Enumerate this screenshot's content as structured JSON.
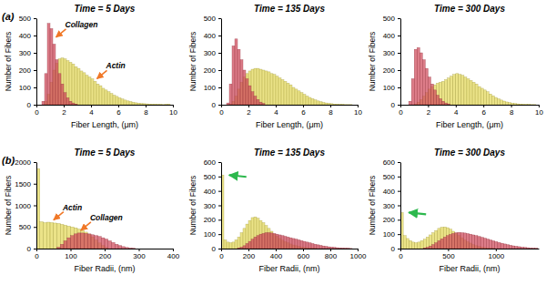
{
  "chart_data": [
    {
      "type": "histogram",
      "panel": "(a)",
      "title": "Time = 5 Days",
      "x_label": "Fiber Length, (μm)",
      "y_label": "Number of Fibers",
      "xlim": [
        0,
        10
      ],
      "xticks": [
        0,
        2,
        4,
        6,
        8,
        10
      ],
      "ylim": [
        0,
        500
      ],
      "yticks": [
        0,
        100,
        200,
        300,
        400,
        500
      ],
      "series": [
        {
          "color": "#e3d85a",
          "bins": [
            0.6,
            0.8,
            1.0,
            1.2,
            1.4,
            1.6,
            1.8,
            2.0,
            2.2,
            2.4,
            2.6,
            2.8,
            3.0,
            3.2,
            3.4,
            3.6,
            3.8,
            4.0,
            4.2,
            4.4,
            4.6,
            4.8,
            5.0,
            5.2,
            5.4,
            5.6,
            5.8,
            6.0,
            6.2,
            6.4,
            6.6,
            6.8,
            7.0,
            7.2,
            7.4,
            7.6,
            7.8,
            8.0,
            8.2,
            8.4,
            8.6,
            8.8,
            9.0,
            9.2,
            9.4,
            9.6,
            9.8
          ],
          "values": [
            20,
            60,
            130,
            200,
            240,
            265,
            270,
            265,
            255,
            245,
            235,
            220,
            210,
            195,
            185,
            170,
            160,
            150,
            135,
            120,
            110,
            95,
            85,
            75,
            65,
            55,
            48,
            40,
            33,
            27,
            22,
            18,
            14,
            11,
            9,
            7,
            6,
            5,
            4,
            3,
            3,
            2,
            2,
            1,
            2,
            3
          ]
        },
        {
          "color": "#cf4a5a",
          "bins": [
            0.4,
            0.6,
            0.8,
            1.0,
            1.2,
            1.4,
            1.6,
            1.8,
            2.0,
            2.2,
            2.4,
            2.6,
            2.8,
            3.0
          ],
          "values": [
            20,
            180,
            470,
            440,
            350,
            260,
            180,
            120,
            70,
            40,
            20,
            10,
            4
          ]
        }
      ],
      "annotations": [
        {
          "text": "Collagen",
          "x": 1.3,
          "y": 380,
          "color": "#f07828"
        },
        {
          "text": "Actin",
          "x": 4.3,
          "y": 140,
          "color": "#f07828"
        }
      ]
    },
    {
      "type": "histogram",
      "title": "Time = 135 Days",
      "x_label": "Fiber Length, (μm)",
      "y_label": "Number of Fibers",
      "xlim": [
        0,
        10
      ],
      "xticks": [
        0,
        2,
        4,
        6,
        8,
        10
      ],
      "ylim": [
        0,
        500
      ],
      "yticks": [
        0,
        100,
        200,
        300,
        400,
        500
      ],
      "series": [
        {
          "color": "#e3d85a",
          "bins": [
            0.6,
            0.8,
            1.0,
            1.2,
            1.4,
            1.6,
            1.8,
            2.0,
            2.2,
            2.4,
            2.6,
            2.8,
            3.0,
            3.2,
            3.4,
            3.6,
            3.8,
            4.0,
            4.2,
            4.4,
            4.6,
            4.8,
            5.0,
            5.2,
            5.4,
            5.6,
            5.8,
            6.0,
            6.2,
            6.4,
            6.6,
            6.8,
            7.0,
            7.2,
            7.4,
            7.6,
            7.8,
            8.0,
            8.2,
            8.4,
            8.6,
            8.8,
            9.0,
            9.2,
            9.4,
            9.6
          ],
          "values": [
            5,
            20,
            50,
            90,
            130,
            160,
            180,
            195,
            205,
            210,
            210,
            205,
            200,
            195,
            190,
            180,
            175,
            165,
            155,
            145,
            135,
            125,
            115,
            100,
            90,
            80,
            70,
            60,
            50,
            42,
            35,
            28,
            22,
            17,
            13,
            10,
            8,
            6,
            4,
            3,
            2,
            2,
            1,
            1,
            1
          ]
        },
        {
          "color": "#cf4a5a",
          "bins": [
            0.4,
            0.6,
            0.8,
            1.0,
            1.2,
            1.4,
            1.6,
            1.8,
            2.0,
            2.2,
            2.4,
            2.6,
            2.8,
            3.0,
            3.2
          ],
          "values": [
            10,
            120,
            340,
            380,
            320,
            260,
            200,
            150,
            110,
            75,
            50,
            30,
            15,
            8
          ]
        }
      ]
    },
    {
      "type": "histogram",
      "title": "Time = 300 Days",
      "x_label": "Fiber Length, (μm)",
      "y_label": "Number of Fibers",
      "xlim": [
        0,
        10
      ],
      "xticks": [
        0,
        2,
        4,
        6,
        8,
        10
      ],
      "ylim": [
        0,
        500
      ],
      "yticks": [
        0,
        100,
        200,
        300,
        400,
        500
      ],
      "series": [
        {
          "color": "#e3d85a",
          "bins": [
            1.0,
            1.2,
            1.4,
            1.6,
            1.8,
            2.0,
            2.2,
            2.4,
            2.6,
            2.8,
            3.0,
            3.2,
            3.4,
            3.6,
            3.8,
            4.0,
            4.2,
            4.4,
            4.6,
            4.8,
            5.0,
            5.2,
            5.4,
            5.6,
            5.8,
            6.0,
            6.2,
            6.4,
            6.6,
            6.8,
            7.0,
            7.2,
            7.4,
            7.6,
            7.8,
            8.0,
            8.2,
            8.4,
            8.6,
            8.8,
            9.0,
            9.2,
            9.4,
            9.6,
            9.8
          ],
          "values": [
            5,
            15,
            30,
            50,
            70,
            90,
            105,
            115,
            125,
            130,
            135,
            145,
            155,
            165,
            175,
            180,
            175,
            170,
            160,
            150,
            140,
            130,
            120,
            105,
            95,
            85,
            75,
            62,
            52,
            42,
            34,
            27,
            21,
            16,
            12,
            9,
            7,
            5,
            4,
            3,
            2,
            2,
            1,
            1
          ]
        },
        {
          "color": "#cf4a5a",
          "bins": [
            0.6,
            0.8,
            1.0,
            1.2,
            1.4,
            1.6,
            1.8,
            2.0,
            2.2,
            2.4,
            2.6,
            2.8,
            3.0,
            3.2,
            3.4,
            3.6
          ],
          "values": [
            20,
            150,
            320,
            330,
            300,
            260,
            210,
            160,
            120,
            85,
            55,
            35,
            20,
            10,
            5
          ]
        }
      ]
    },
    {
      "type": "histogram",
      "panel": "(b)",
      "title": "Time = 5 Days",
      "x_label": "Fiber Radii, (nm)",
      "y_label": "Number of Fibers",
      "xlim": [
        0,
        400
      ],
      "xticks": [
        0,
        100,
        200,
        300,
        400
      ],
      "ylim": [
        0,
        2000
      ],
      "yticks": [
        0,
        500,
        1000,
        1500,
        2000
      ],
      "series": [
        {
          "color": "#e3d85a",
          "bins": [
            0,
            10,
            20,
            30,
            40,
            50,
            60,
            70,
            80,
            90,
            100,
            110,
            120,
            130,
            140,
            150,
            160,
            170,
            180,
            190,
            200,
            210
          ],
          "values": [
            1850,
            620,
            600,
            610,
            600,
            590,
            580,
            560,
            540,
            520,
            500,
            480,
            450,
            420,
            380,
            330,
            270,
            200,
            130,
            70,
            25
          ]
        },
        {
          "color": "#cf4a5a",
          "bins": [
            60,
            70,
            80,
            90,
            100,
            110,
            120,
            130,
            140,
            150,
            160,
            170,
            180,
            190,
            200,
            210,
            220,
            230,
            240,
            250,
            260,
            270,
            280,
            290
          ],
          "values": [
            30,
            100,
            180,
            250,
            300,
            340,
            360,
            360,
            350,
            340,
            320,
            300,
            280,
            250,
            220,
            180,
            140,
            100,
            70,
            45,
            25,
            12,
            5
          ]
        }
      ],
      "annotations": [
        {
          "text": "Actin",
          "x": 45,
          "y": 620,
          "color": "#f07828"
        },
        {
          "text": "Collagen",
          "x": 125,
          "y": 380,
          "color": "#f07828"
        }
      ]
    },
    {
      "type": "histogram",
      "title": "Time = 135 Days",
      "x_label": "Fiber Radii, (nm)",
      "y_label": "Number of Fibers",
      "xlim": [
        0,
        1000
      ],
      "xticks": [
        0,
        200,
        400,
        600,
        800,
        1000
      ],
      "ylim": [
        0,
        600
      ],
      "yticks": [
        0,
        100,
        200,
        300,
        400,
        500,
        600
      ],
      "series": [
        {
          "color": "#e3d85a",
          "bins": [
            0,
            20,
            40,
            60,
            80,
            100,
            120,
            140,
            160,
            180,
            200,
            220,
            240,
            260,
            280,
            300,
            320,
            340,
            360,
            380,
            400,
            420,
            440,
            460,
            480,
            500,
            520,
            540,
            560,
            580,
            600,
            620,
            640,
            660,
            680,
            700
          ],
          "values": [
            510,
            60,
            45,
            40,
            45,
            60,
            80,
            110,
            140,
            170,
            195,
            215,
            220,
            210,
            195,
            180,
            160,
            140,
            120,
            100,
            85,
            70,
            58,
            48,
            40,
            32,
            25,
            20,
            15,
            11,
            8,
            6,
            4,
            3,
            2
          ]
        },
        {
          "color": "#cf4a5a",
          "bins": [
            120,
            140,
            160,
            180,
            200,
            220,
            240,
            260,
            280,
            300,
            320,
            340,
            360,
            380,
            400,
            420,
            440,
            460,
            480,
            500,
            520,
            540,
            560,
            580,
            600,
            620,
            640,
            660,
            680,
            700,
            720,
            740,
            760,
            780,
            800,
            820,
            840,
            860,
            880,
            900,
            920,
            940,
            960
          ],
          "values": [
            5,
            10,
            20,
            35,
            50,
            65,
            80,
            90,
            100,
            105,
            110,
            110,
            108,
            105,
            100,
            95,
            90,
            85,
            80,
            75,
            70,
            65,
            60,
            55,
            50,
            45,
            40,
            35,
            30,
            26,
            22,
            18,
            15,
            12,
            10,
            8,
            6,
            5,
            4,
            3,
            2,
            1
          ]
        }
      ],
      "annotations": [
        {
          "x": 25,
          "y": 510,
          "color": "#2db84d"
        }
      ]
    },
    {
      "type": "histogram",
      "title": "Time = 300 Days",
      "x_label": "Fiber Radii, (nm)",
      "y_label": "Number of Fibers",
      "xlim": [
        0,
        1450
      ],
      "xticks": [
        0,
        500,
        1000
      ],
      "ylim": [
        0,
        600
      ],
      "yticks": [
        0,
        100,
        200,
        300,
        400,
        500,
        600
      ],
      "series": [
        {
          "color": "#e3d85a",
          "bins": [
            0,
            30,
            60,
            90,
            120,
            150,
            180,
            210,
            240,
            270,
            300,
            330,
            360,
            390,
            420,
            450,
            480,
            510,
            540,
            570,
            600,
            630,
            660,
            690,
            720,
            750,
            780,
            810,
            840,
            870,
            900,
            930,
            960,
            990
          ],
          "values": [
            250,
            90,
            70,
            55,
            45,
            40,
            45,
            55,
            65,
            80,
            95,
            110,
            125,
            140,
            148,
            150,
            145,
            135,
            120,
            105,
            90,
            75,
            60,
            48,
            38,
            28,
            20,
            14,
            10,
            7,
            5,
            3,
            2
          ]
        },
        {
          "color": "#cf4a5a",
          "bins": [
            240,
            270,
            300,
            330,
            360,
            390,
            420,
            450,
            480,
            510,
            540,
            570,
            600,
            630,
            660,
            690,
            720,
            750,
            780,
            810,
            840,
            870,
            900,
            930,
            960,
            990,
            1020,
            1050,
            1080,
            1110,
            1140,
            1170,
            1200,
            1230,
            1260,
            1290,
            1320,
            1350,
            1380,
            1410,
            1440
          ],
          "values": [
            5,
            10,
            18,
            28,
            40,
            55,
            68,
            80,
            90,
            98,
            105,
            110,
            112,
            110,
            108,
            104,
            100,
            95,
            90,
            84,
            78,
            72,
            66,
            60,
            54,
            48,
            42,
            37,
            32,
            27,
            23,
            19,
            16,
            13,
            10,
            8,
            6,
            4,
            3,
            2
          ]
        }
      ],
      "annotations": [
        {
          "x": 40,
          "y": 250,
          "color": "#2db84d"
        }
      ]
    }
  ]
}
